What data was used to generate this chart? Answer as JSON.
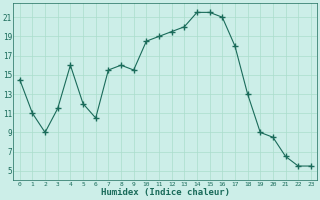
{
  "x": [
    0,
    1,
    2,
    3,
    4,
    5,
    6,
    7,
    8,
    9,
    10,
    11,
    12,
    13,
    14,
    15,
    16,
    17,
    18,
    19,
    20,
    21,
    22,
    23
  ],
  "y": [
    14.5,
    11,
    9,
    11.5,
    16,
    12,
    10.5,
    15.5,
    16,
    15.5,
    18.5,
    19,
    19.5,
    20,
    21.5,
    21.5,
    21,
    18,
    13,
    9,
    8.5,
    6.5,
    5.5,
    5.5
  ],
  "line_color": "#1a6b5a",
  "marker": "+",
  "marker_size": 4,
  "bg_color": "#cceee8",
  "grid_color": "#aaddcc",
  "xlabel": "Humidex (Indice chaleur)",
  "ytick_labels": [
    "5",
    "7",
    "9",
    "11",
    "13",
    "15",
    "17",
    "19",
    "21"
  ],
  "ytick_vals": [
    5,
    7,
    9,
    11,
    13,
    15,
    17,
    19,
    21
  ],
  "xlim": [
    -0.5,
    23.5
  ],
  "ylim": [
    4.0,
    22.5
  ]
}
